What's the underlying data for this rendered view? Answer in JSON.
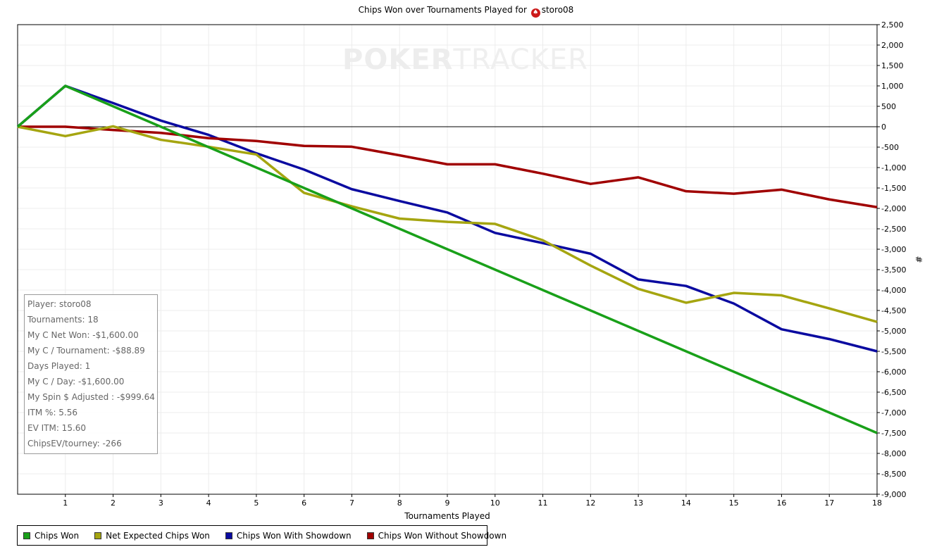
{
  "title": {
    "prefix": "Chips Won over Tournaments Played for",
    "player": "storo08"
  },
  "watermark": {
    "bold": "POKER",
    "thin": "TRACKER"
  },
  "chart_data": {
    "type": "line",
    "xlabel": "Tournaments Played",
    "ylabel": "#",
    "xlim": [
      0,
      18
    ],
    "ylim": [
      -9000,
      2500
    ],
    "x_ticks": [
      1,
      2,
      3,
      4,
      5,
      6,
      7,
      8,
      9,
      10,
      11,
      12,
      13,
      14,
      15,
      16,
      17,
      18
    ],
    "y_ticks": [
      2500,
      2000,
      1500,
      1000,
      500,
      0,
      -500,
      -1000,
      -1500,
      -2000,
      -2500,
      -3000,
      -3500,
      -4000,
      -4500,
      -5000,
      -5500,
      -6000,
      -6500,
      -7000,
      -7500,
      -8000,
      -8500,
      -9000
    ],
    "y_tick_labels": [
      "2,500",
      "2,000",
      "1,500",
      "1,000",
      "500",
      "0",
      "-500",
      "-1,000",
      "-1,500",
      "-2,000",
      "-2,500",
      "-3,000",
      "-3,500",
      "-4,000",
      "-4,500",
      "-5,000",
      "-5,500",
      "-6,000",
      "-6,500",
      "-7,000",
      "-7,500",
      "-8,000",
      "-8,500",
      "-9,000"
    ],
    "grid": true,
    "legend_position": "bottom-left",
    "x": [
      0,
      1,
      2,
      3,
      4,
      5,
      6,
      7,
      8,
      9,
      10,
      11,
      12,
      13,
      14,
      15,
      16,
      17,
      18
    ],
    "series": [
      {
        "name": "Chips Won With Showdown",
        "color": "#0a0aa0",
        "values": [
          0,
          1000,
          580,
          150,
          -200,
          -650,
          -1050,
          -1530,
          -1820,
          -2100,
          -2600,
          -2850,
          -3110,
          -3740,
          -3900,
          -4330,
          -4960,
          -5200,
          -5500
        ]
      },
      {
        "name": "Chips Won Without Showdown",
        "color": "#a00000",
        "values": [
          0,
          0,
          -80,
          -150,
          -280,
          -350,
          -470,
          -490,
          -700,
          -920,
          -920,
          -1150,
          -1400,
          -1240,
          -1580,
          -1640,
          -1540,
          -1780,
          -1970
        ]
      },
      {
        "name": "Net Expected Chips Won",
        "color": "#a5a510",
        "values": [
          0,
          -230,
          10,
          -320,
          -490,
          -680,
          -1620,
          -1950,
          -2250,
          -2330,
          -2380,
          -2780,
          -3400,
          -3970,
          -4310,
          -4070,
          -4130,
          -4450,
          -4780
        ]
      },
      {
        "name": "Chips Won",
        "color": "#19a019",
        "values": [
          0,
          1000,
          500,
          0,
          -500,
          -1000,
          -1500,
          -2000,
          -2500,
          -3000,
          -3500,
          -4000,
          -4500,
          -5000,
          -5500,
          -6000,
          -6500,
          -7000,
          -7500
        ]
      }
    ],
    "legend": [
      {
        "label": "Chips Won",
        "color": "#19a019"
      },
      {
        "label": "Net Expected Chips Won",
        "color": "#a5a510"
      },
      {
        "label": "Chips Won With Showdown",
        "color": "#0a0aa0"
      },
      {
        "label": "Chips Won Without Showdown",
        "color": "#a00000"
      }
    ]
  },
  "stats": [
    "Player: storo08",
    "Tournaments: 18",
    "My C Net Won: -$1,600.00",
    "My C / Tournament: -$88.89",
    "Days Played: 1",
    "My C / Day: -$1,600.00",
    "My Spin $ Adjusted : -$999.64",
    "ITM %: 5.56",
    "EV ITM: 15.60",
    "ChipsEV/tourney: -266"
  ]
}
